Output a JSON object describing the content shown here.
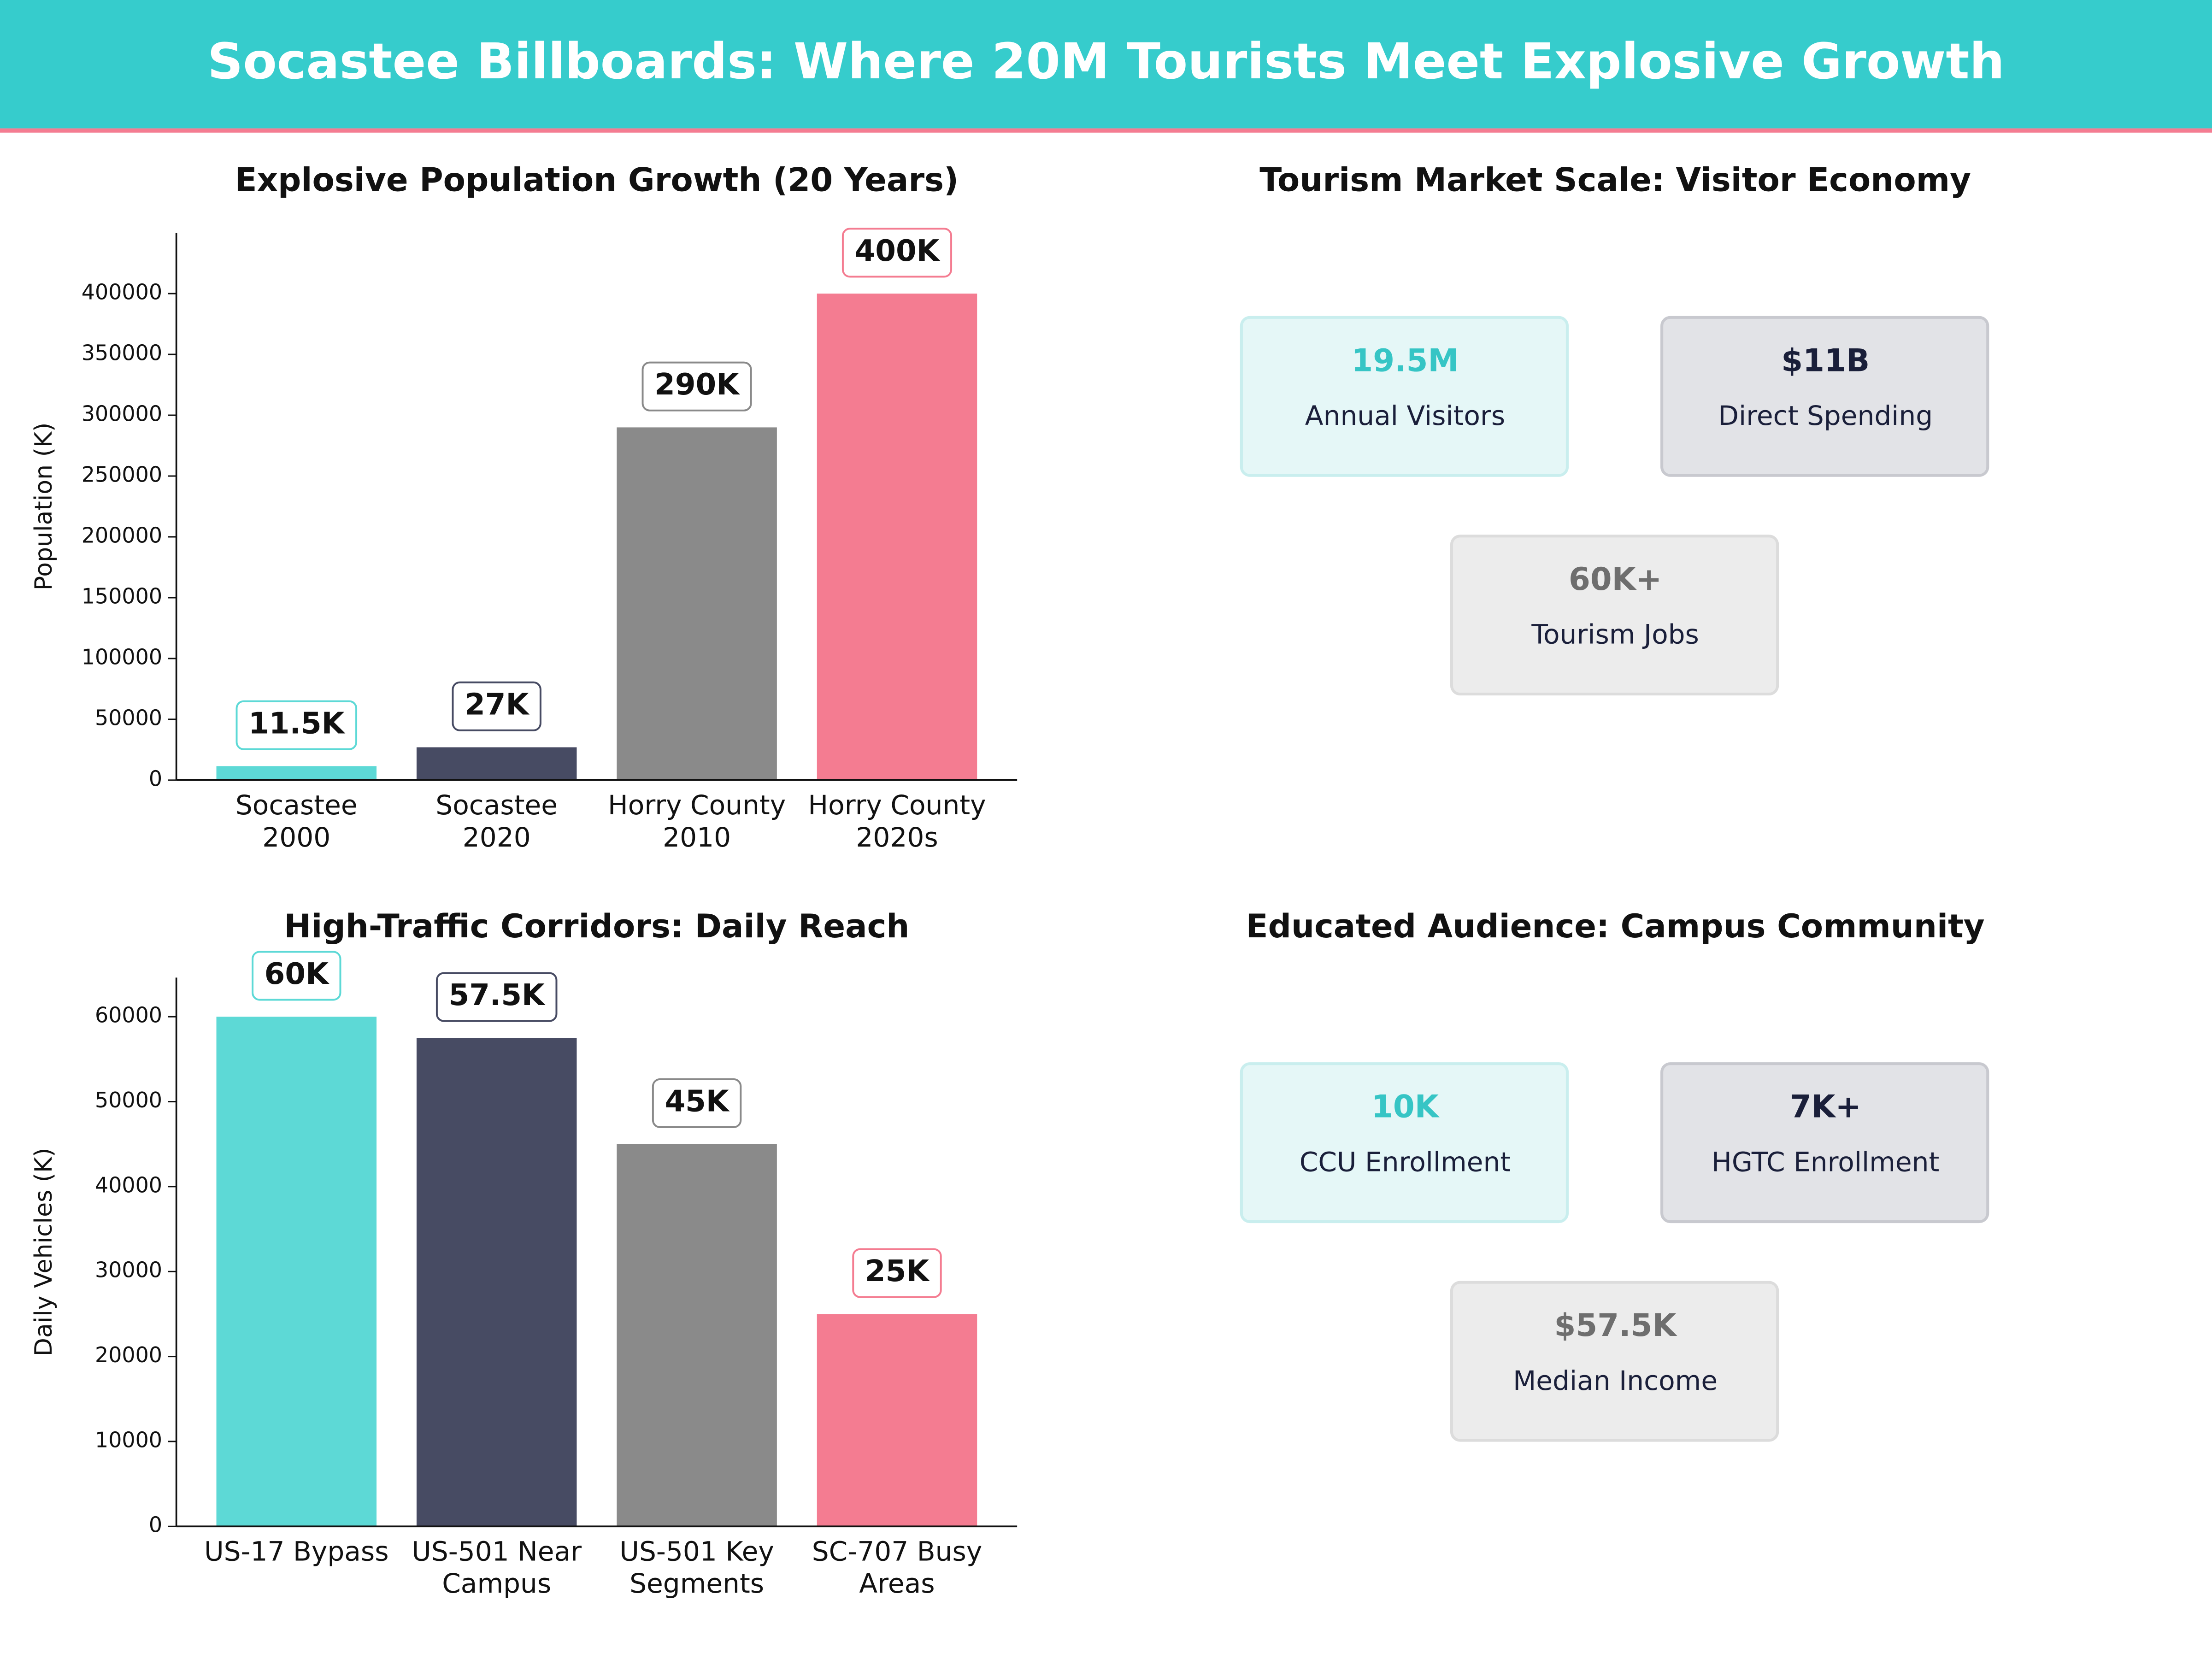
{
  "header": {
    "title": "Socastee Billboards: Where 20M Tourists Meet Explosive Growth"
  },
  "chart_data": [
    {
      "type": "bar",
      "title": "Explosive Population Growth (20 Years)",
      "y_label": "Population (K)",
      "categories": [
        "Socastee\n2000",
        "Socastee\n2020",
        "Horry County\n2010",
        "Horry County\n2020s"
      ],
      "values": [
        11500,
        27000,
        290000,
        400000
      ],
      "value_labels": [
        "11.5K",
        "27K",
        "290K",
        "400K"
      ],
      "colors": [
        "#5dd9d6",
        "#474b63",
        "#8a8a8a",
        "#f47c91"
      ],
      "ylim": [
        0,
        450000
      ],
      "yticks": [
        0,
        50000,
        100000,
        150000,
        200000,
        250000,
        300000,
        350000,
        400000
      ],
      "grid": false
    },
    {
      "type": "bar",
      "title": "High-Traffic Corridors: Daily Reach",
      "y_label": "Daily Vehicles (K)",
      "categories": [
        "US-17 Bypass",
        "US-501 Near\nCampus",
        "US-501 Key\nSegments",
        "SC-707 Busy\nAreas"
      ],
      "values": [
        60000,
        57500,
        45000,
        25000
      ],
      "value_labels": [
        "60K",
        "57.5K",
        "45K",
        "25K"
      ],
      "colors": [
        "#5dd9d6",
        "#474b63",
        "#8a8a8a",
        "#f47c91"
      ],
      "ylim": [
        0,
        64600
      ],
      "yticks": [
        0,
        10000,
        20000,
        30000,
        40000,
        50000,
        60000
      ],
      "grid": false
    }
  ],
  "panels": [
    {
      "title": "Tourism Market Scale: Visitor Economy",
      "cards": [
        {
          "value": "19.5M",
          "label": "Annual Visitors"
        },
        {
          "value": "$11B",
          "label": "Direct Spending"
        },
        {
          "value": "60K+",
          "label": "Tourism Jobs"
        }
      ]
    },
    {
      "title": "Educated Audience: Campus Community",
      "cards": [
        {
          "value": "10K",
          "label": "CCU Enrollment"
        },
        {
          "value": "7K+",
          "label": "HGTC Enrollment"
        },
        {
          "value": "$57.5K",
          "label": "Median Income"
        }
      ]
    }
  ]
}
